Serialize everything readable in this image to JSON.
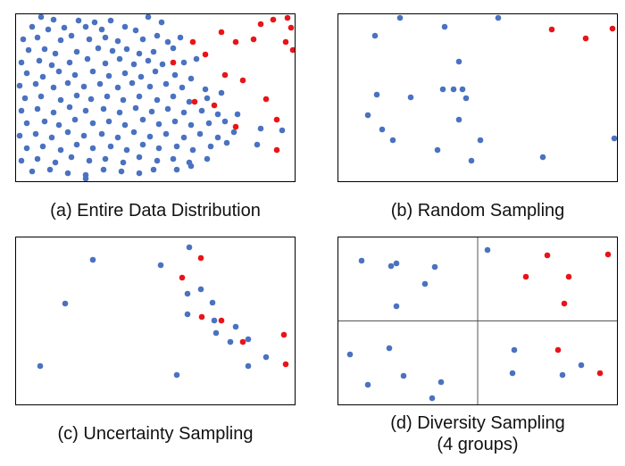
{
  "colors": {
    "blue": "#4a72c0",
    "red": "#e8141a",
    "frame": "#000000"
  },
  "panels": [
    {
      "id": "a",
      "caption": "(a) Entire Data Distribution",
      "caption_lines": [],
      "grid_lines": false,
      "points": {
        "blue": [
          [
            46,
            19
          ],
          [
            60,
            22
          ],
          [
            88,
            23
          ],
          [
            106,
            25
          ],
          [
            124,
            23
          ],
          [
            166,
            19
          ],
          [
            181,
            25
          ],
          [
            36,
            30
          ],
          [
            54,
            33
          ],
          [
            72,
            31
          ],
          [
            96,
            30
          ],
          [
            114,
            33
          ],
          [
            140,
            30
          ],
          [
            152,
            34
          ],
          [
            26,
            44
          ],
          [
            42,
            42
          ],
          [
            68,
            45
          ],
          [
            80,
            40
          ],
          [
            100,
            44
          ],
          [
            118,
            42
          ],
          [
            132,
            46
          ],
          [
            160,
            44
          ],
          [
            176,
            40
          ],
          [
            188,
            47
          ],
          [
            202,
            42
          ],
          [
            32,
            56
          ],
          [
            50,
            55
          ],
          [
            62,
            60
          ],
          [
            86,
            58
          ],
          [
            110,
            54
          ],
          [
            126,
            57
          ],
          [
            142,
            55
          ],
          [
            156,
            60
          ],
          [
            172,
            58
          ],
          [
            194,
            54
          ],
          [
            24,
            70
          ],
          [
            44,
            68
          ],
          [
            58,
            73
          ],
          [
            78,
            70
          ],
          [
            98,
            66
          ],
          [
            118,
            71
          ],
          [
            134,
            66
          ],
          [
            150,
            72
          ],
          [
            166,
            68
          ],
          [
            182,
            72
          ],
          [
            206,
            70
          ],
          [
            220,
            66
          ],
          [
            30,
            82
          ],
          [
            48,
            86
          ],
          [
            66,
            80
          ],
          [
            84,
            84
          ],
          [
            104,
            80
          ],
          [
            122,
            85
          ],
          [
            140,
            82
          ],
          [
            158,
            86
          ],
          [
            174,
            80
          ],
          [
            196,
            84
          ],
          [
            214,
            88
          ],
          [
            22,
            96
          ],
          [
            40,
            94
          ],
          [
            60,
            98
          ],
          [
            76,
            93
          ],
          [
            94,
            97
          ],
          [
            112,
            94
          ],
          [
            132,
            98
          ],
          [
            148,
            93
          ],
          [
            168,
            97
          ],
          [
            186,
            94
          ],
          [
            204,
            98
          ],
          [
            230,
            100
          ],
          [
            28,
            110
          ],
          [
            46,
            108
          ],
          [
            68,
            112
          ],
          [
            86,
            107
          ],
          [
            102,
            111
          ],
          [
            120,
            108
          ],
          [
            138,
            112
          ],
          [
            156,
            108
          ],
          [
            176,
            112
          ],
          [
            194,
            108
          ],
          [
            212,
            114
          ],
          [
            232,
            110
          ],
          [
            248,
            104
          ],
          [
            24,
            124
          ],
          [
            42,
            122
          ],
          [
            60,
            126
          ],
          [
            78,
            120
          ],
          [
            96,
            124
          ],
          [
            116,
            122
          ],
          [
            134,
            126
          ],
          [
            152,
            121
          ],
          [
            170,
            125
          ],
          [
            188,
            122
          ],
          [
            206,
            126
          ],
          [
            226,
            124
          ],
          [
            244,
            128
          ],
          [
            30,
            138
          ],
          [
            50,
            136
          ],
          [
            66,
            140
          ],
          [
            84,
            134
          ],
          [
            104,
            138
          ],
          [
            122,
            136
          ],
          [
            140,
            140
          ],
          [
            160,
            134
          ],
          [
            178,
            139
          ],
          [
            196,
            136
          ],
          [
            214,
            140
          ],
          [
            234,
            138
          ],
          [
            252,
            136
          ],
          [
            266,
            128
          ],
          [
            22,
            152
          ],
          [
            40,
            150
          ],
          [
            58,
            154
          ],
          [
            76,
            148
          ],
          [
            94,
            152
          ],
          [
            114,
            150
          ],
          [
            132,
            154
          ],
          [
            150,
            148
          ],
          [
            168,
            153
          ],
          [
            186,
            150
          ],
          [
            206,
            154
          ],
          [
            224,
            150
          ],
          [
            244,
            154
          ],
          [
            262,
            148
          ],
          [
            30,
            166
          ],
          [
            48,
            164
          ],
          [
            68,
            168
          ],
          [
            86,
            162
          ],
          [
            104,
            166
          ],
          [
            124,
            164
          ],
          [
            142,
            168
          ],
          [
            160,
            162
          ],
          [
            178,
            166
          ],
          [
            198,
            164
          ],
          [
            216,
            168
          ],
          [
            236,
            164
          ],
          [
            254,
            160
          ],
          [
            288,
            162
          ],
          [
            24,
            180
          ],
          [
            42,
            178
          ],
          [
            62,
            182
          ],
          [
            80,
            176
          ],
          [
            100,
            180
          ],
          [
            118,
            178
          ],
          [
            138,
            182
          ],
          [
            156,
            176
          ],
          [
            176,
            180
          ],
          [
            194,
            178
          ],
          [
            212,
            182
          ],
          [
            232,
            178
          ],
          [
            36,
            192
          ],
          [
            56,
            190
          ],
          [
            76,
            194
          ],
          [
            96,
            196
          ],
          [
            116,
            190
          ],
          [
            136,
            192
          ],
          [
            156,
            194
          ],
          [
            172,
            190
          ],
          [
            198,
            190
          ],
          [
            214,
            186
          ],
          [
            292,
            144
          ],
          [
            316,
            146
          ],
          [
            96,
            200
          ]
        ],
        "red": [
          [
            216,
            47
          ],
          [
            230,
            61
          ],
          [
            248,
            36
          ],
          [
            264,
            47
          ],
          [
            284,
            44
          ],
          [
            292,
            27
          ],
          [
            306,
            22
          ],
          [
            322,
            20
          ],
          [
            326,
            31
          ],
          [
            320,
            47
          ],
          [
            328,
            56
          ],
          [
            194,
            70
          ],
          [
            252,
            84
          ],
          [
            272,
            90
          ],
          [
            298,
            111
          ],
          [
            218,
            114
          ],
          [
            240,
            118
          ],
          [
            264,
            142
          ],
          [
            310,
            134
          ],
          [
            310,
            168
          ]
        ]
      }
    },
    {
      "id": "b",
      "caption": "(b) Random Sampling",
      "caption_lines": [],
      "grid_lines": false,
      "points": {
        "blue": [
          [
            448,
            20
          ],
          [
            558,
            20
          ],
          [
            498,
            30
          ],
          [
            420,
            40
          ],
          [
            514,
            69
          ],
          [
            422,
            106
          ],
          [
            460,
            109
          ],
          [
            496,
            100
          ],
          [
            508,
            100
          ],
          [
            518,
            100
          ],
          [
            522,
            110
          ],
          [
            412,
            129
          ],
          [
            514,
            134
          ],
          [
            428,
            145
          ],
          [
            440,
            157
          ],
          [
            538,
            157
          ],
          [
            490,
            168
          ],
          [
            528,
            180
          ],
          [
            608,
            176
          ],
          [
            688,
            155
          ]
        ],
        "red": [
          [
            618,
            33
          ],
          [
            656,
            43
          ],
          [
            686,
            32
          ]
        ]
      }
    },
    {
      "id": "c",
      "caption": "(c) Uncertainty Sampling",
      "caption_lines": [],
      "grid_lines": false,
      "points": {
        "blue": [
          [
            104,
            291
          ],
          [
            180,
            297
          ],
          [
            212,
            277
          ],
          [
            210,
            329
          ],
          [
            225,
            324
          ],
          [
            238,
            339
          ],
          [
            210,
            352
          ],
          [
            240,
            359
          ],
          [
            264,
            366
          ],
          [
            242,
            373
          ],
          [
            258,
            383
          ],
          [
            278,
            380
          ],
          [
            298,
            400
          ],
          [
            278,
            410
          ],
          [
            73,
            340
          ],
          [
            45,
            410
          ],
          [
            198,
            420
          ]
        ],
        "red": [
          [
            225,
            289
          ],
          [
            204,
            311
          ],
          [
            226,
            355
          ],
          [
            248,
            359
          ],
          [
            272,
            383
          ],
          [
            318,
            375
          ],
          [
            320,
            408
          ]
        ]
      }
    },
    {
      "id": "d",
      "caption": "(d) Diversity Sampling",
      "caption_lines": [
        "(d) Diversity Sampling",
        "(4 groups)"
      ],
      "grid_lines": true,
      "points": {
        "blue": [
          [
            405,
            292
          ],
          [
            438,
            298
          ],
          [
            444,
            295
          ],
          [
            487,
            299
          ],
          [
            476,
            318
          ],
          [
            444,
            343
          ],
          [
            546,
            280
          ],
          [
            436,
            390
          ],
          [
            392,
            397
          ],
          [
            576,
            392
          ],
          [
            452,
            421
          ],
          [
            412,
            431
          ],
          [
            484,
            446
          ],
          [
            494,
            428
          ],
          [
            574,
            418
          ],
          [
            630,
            420
          ],
          [
            651,
            409
          ]
        ],
        "red": [
          [
            613,
            286
          ],
          [
            589,
            310
          ],
          [
            637,
            310
          ],
          [
            632,
            340
          ],
          [
            681,
            285
          ],
          [
            625,
            392
          ],
          [
            672,
            418
          ]
        ]
      }
    }
  ]
}
